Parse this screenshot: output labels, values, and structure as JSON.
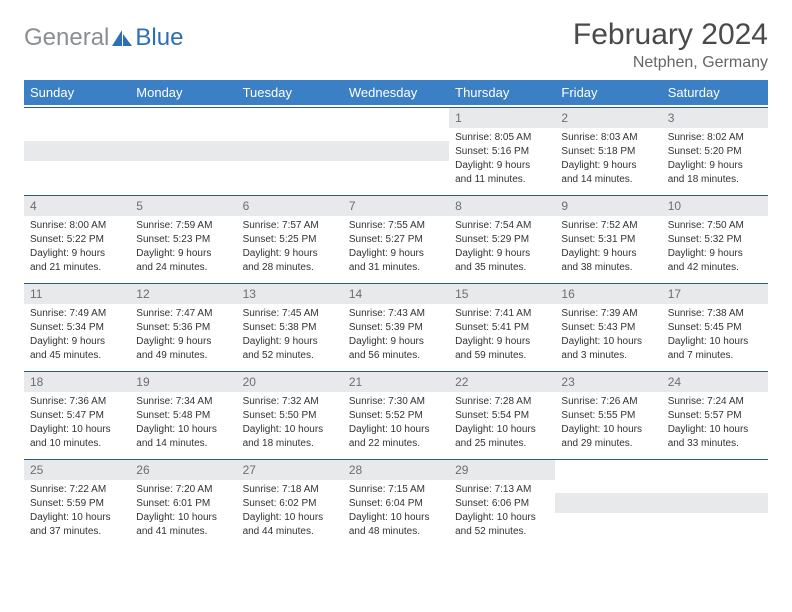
{
  "brand": {
    "part1": "General",
    "part2": "Blue"
  },
  "title": "February 2024",
  "location": "Netphen, Germany",
  "colors": {
    "header_bg": "#3b7fc4",
    "daynum_bg": "#e8e9ea",
    "border": "#2d5a8c",
    "logo_gray": "#8a8f93",
    "logo_blue": "#2d6fb5"
  },
  "daynames": [
    "Sunday",
    "Monday",
    "Tuesday",
    "Wednesday",
    "Thursday",
    "Friday",
    "Saturday"
  ],
  "weeks": [
    [
      null,
      null,
      null,
      null,
      {
        "n": "1",
        "sr": "Sunrise: 8:05 AM",
        "ss": "Sunset: 5:16 PM",
        "d1": "Daylight: 9 hours",
        "d2": "and 11 minutes."
      },
      {
        "n": "2",
        "sr": "Sunrise: 8:03 AM",
        "ss": "Sunset: 5:18 PM",
        "d1": "Daylight: 9 hours",
        "d2": "and 14 minutes."
      },
      {
        "n": "3",
        "sr": "Sunrise: 8:02 AM",
        "ss": "Sunset: 5:20 PM",
        "d1": "Daylight: 9 hours",
        "d2": "and 18 minutes."
      }
    ],
    [
      {
        "n": "4",
        "sr": "Sunrise: 8:00 AM",
        "ss": "Sunset: 5:22 PM",
        "d1": "Daylight: 9 hours",
        "d2": "and 21 minutes."
      },
      {
        "n": "5",
        "sr": "Sunrise: 7:59 AM",
        "ss": "Sunset: 5:23 PM",
        "d1": "Daylight: 9 hours",
        "d2": "and 24 minutes."
      },
      {
        "n": "6",
        "sr": "Sunrise: 7:57 AM",
        "ss": "Sunset: 5:25 PM",
        "d1": "Daylight: 9 hours",
        "d2": "and 28 minutes."
      },
      {
        "n": "7",
        "sr": "Sunrise: 7:55 AM",
        "ss": "Sunset: 5:27 PM",
        "d1": "Daylight: 9 hours",
        "d2": "and 31 minutes."
      },
      {
        "n": "8",
        "sr": "Sunrise: 7:54 AM",
        "ss": "Sunset: 5:29 PM",
        "d1": "Daylight: 9 hours",
        "d2": "and 35 minutes."
      },
      {
        "n": "9",
        "sr": "Sunrise: 7:52 AM",
        "ss": "Sunset: 5:31 PM",
        "d1": "Daylight: 9 hours",
        "d2": "and 38 minutes."
      },
      {
        "n": "10",
        "sr": "Sunrise: 7:50 AM",
        "ss": "Sunset: 5:32 PM",
        "d1": "Daylight: 9 hours",
        "d2": "and 42 minutes."
      }
    ],
    [
      {
        "n": "11",
        "sr": "Sunrise: 7:49 AM",
        "ss": "Sunset: 5:34 PM",
        "d1": "Daylight: 9 hours",
        "d2": "and 45 minutes."
      },
      {
        "n": "12",
        "sr": "Sunrise: 7:47 AM",
        "ss": "Sunset: 5:36 PM",
        "d1": "Daylight: 9 hours",
        "d2": "and 49 minutes."
      },
      {
        "n": "13",
        "sr": "Sunrise: 7:45 AM",
        "ss": "Sunset: 5:38 PM",
        "d1": "Daylight: 9 hours",
        "d2": "and 52 minutes."
      },
      {
        "n": "14",
        "sr": "Sunrise: 7:43 AM",
        "ss": "Sunset: 5:39 PM",
        "d1": "Daylight: 9 hours",
        "d2": "and 56 minutes."
      },
      {
        "n": "15",
        "sr": "Sunrise: 7:41 AM",
        "ss": "Sunset: 5:41 PM",
        "d1": "Daylight: 9 hours",
        "d2": "and 59 minutes."
      },
      {
        "n": "16",
        "sr": "Sunrise: 7:39 AM",
        "ss": "Sunset: 5:43 PM",
        "d1": "Daylight: 10 hours",
        "d2": "and 3 minutes."
      },
      {
        "n": "17",
        "sr": "Sunrise: 7:38 AM",
        "ss": "Sunset: 5:45 PM",
        "d1": "Daylight: 10 hours",
        "d2": "and 7 minutes."
      }
    ],
    [
      {
        "n": "18",
        "sr": "Sunrise: 7:36 AM",
        "ss": "Sunset: 5:47 PM",
        "d1": "Daylight: 10 hours",
        "d2": "and 10 minutes."
      },
      {
        "n": "19",
        "sr": "Sunrise: 7:34 AM",
        "ss": "Sunset: 5:48 PM",
        "d1": "Daylight: 10 hours",
        "d2": "and 14 minutes."
      },
      {
        "n": "20",
        "sr": "Sunrise: 7:32 AM",
        "ss": "Sunset: 5:50 PM",
        "d1": "Daylight: 10 hours",
        "d2": "and 18 minutes."
      },
      {
        "n": "21",
        "sr": "Sunrise: 7:30 AM",
        "ss": "Sunset: 5:52 PM",
        "d1": "Daylight: 10 hours",
        "d2": "and 22 minutes."
      },
      {
        "n": "22",
        "sr": "Sunrise: 7:28 AM",
        "ss": "Sunset: 5:54 PM",
        "d1": "Daylight: 10 hours",
        "d2": "and 25 minutes."
      },
      {
        "n": "23",
        "sr": "Sunrise: 7:26 AM",
        "ss": "Sunset: 5:55 PM",
        "d1": "Daylight: 10 hours",
        "d2": "and 29 minutes."
      },
      {
        "n": "24",
        "sr": "Sunrise: 7:24 AM",
        "ss": "Sunset: 5:57 PM",
        "d1": "Daylight: 10 hours",
        "d2": "and 33 minutes."
      }
    ],
    [
      {
        "n": "25",
        "sr": "Sunrise: 7:22 AM",
        "ss": "Sunset: 5:59 PM",
        "d1": "Daylight: 10 hours",
        "d2": "and 37 minutes."
      },
      {
        "n": "26",
        "sr": "Sunrise: 7:20 AM",
        "ss": "Sunset: 6:01 PM",
        "d1": "Daylight: 10 hours",
        "d2": "and 41 minutes."
      },
      {
        "n": "27",
        "sr": "Sunrise: 7:18 AM",
        "ss": "Sunset: 6:02 PM",
        "d1": "Daylight: 10 hours",
        "d2": "and 44 minutes."
      },
      {
        "n": "28",
        "sr": "Sunrise: 7:15 AM",
        "ss": "Sunset: 6:04 PM",
        "d1": "Daylight: 10 hours",
        "d2": "and 48 minutes."
      },
      {
        "n": "29",
        "sr": "Sunrise: 7:13 AM",
        "ss": "Sunset: 6:06 PM",
        "d1": "Daylight: 10 hours",
        "d2": "and 52 minutes."
      },
      null,
      null
    ]
  ]
}
